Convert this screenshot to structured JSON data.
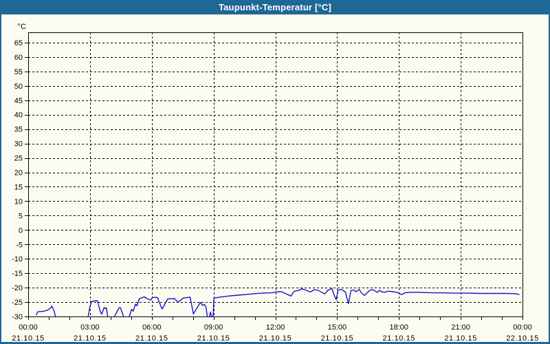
{
  "window": {
    "title": "Taupunkt-Temperatur [°C]"
  },
  "colors": {
    "titlebar": "#1f6795",
    "window_border": "#1f6795",
    "background": "#fcfcf3",
    "grid": "#000000",
    "line": "#1515c8"
  },
  "chart_data": {
    "type": "line",
    "title": "Taupunkt-Temperatur [°C]",
    "ylabel": "°C",
    "xlabel": "",
    "grid": "dashed",
    "legend_position": "none",
    "ylim": [
      -30,
      68
    ],
    "y_tick_step": 5,
    "y_ticks": [
      65,
      60,
      55,
      50,
      45,
      40,
      35,
      30,
      25,
      20,
      15,
      10,
      5,
      0,
      -5,
      -10,
      -15,
      -20,
      -25,
      -30
    ],
    "xlim_hours": [
      0,
      24
    ],
    "x_minor_tick_every_hours": 1,
    "x_ticks": [
      {
        "hour": 0,
        "time": "00:00",
        "date": "21.10.15"
      },
      {
        "hour": 3,
        "time": "03:00",
        "date": "21.10.15"
      },
      {
        "hour": 6,
        "time": "06:00",
        "date": "21.10.15"
      },
      {
        "hour": 9,
        "time": "09:00",
        "date": "21.10.15"
      },
      {
        "hour": 12,
        "time": "12:00",
        "date": "21.10.15"
      },
      {
        "hour": 15,
        "time": "15:00",
        "date": "21.10.15"
      },
      {
        "hour": 18,
        "time": "18:00",
        "date": "21.10.15"
      },
      {
        "hour": 21,
        "time": "21:00",
        "date": "21.10.15"
      },
      {
        "hour": 24,
        "time": "00:00",
        "date": "22.10.15"
      }
    ],
    "series": [
      {
        "name": "Taupunkt",
        "color": "#1515c8",
        "points": [
          [
            0.4,
            -29.5
          ],
          [
            0.45,
            -28.4
          ],
          [
            0.55,
            -28.3
          ],
          [
            0.72,
            -28.2
          ],
          [
            0.9,
            -27.9
          ],
          [
            1.05,
            -27.3
          ],
          [
            1.15,
            -26.4
          ],
          [
            1.25,
            -27.9
          ],
          [
            1.33,
            -30
          ],
          null,
          [
            2.91,
            -30
          ],
          [
            3.0,
            -26.5
          ],
          [
            3.07,
            -24.8
          ],
          [
            3.2,
            -24.6
          ],
          [
            3.36,
            -24.5
          ],
          [
            3.5,
            -28.3
          ],
          [
            3.57,
            -29.2
          ],
          [
            3.69,
            -26.9
          ],
          [
            3.76,
            -27.3
          ],
          [
            3.8,
            -27.0
          ],
          [
            3.86,
            -30
          ],
          null,
          [
            4.19,
            -30
          ],
          [
            4.42,
            -26.9
          ],
          [
            4.48,
            -27.0
          ],
          [
            4.63,
            -30
          ],
          null,
          [
            4.91,
            -30
          ],
          [
            5.02,
            -27.5
          ],
          [
            5.1,
            -28.2
          ],
          [
            5.21,
            -25.7
          ],
          [
            5.28,
            -26.3
          ],
          [
            5.4,
            -23.8
          ],
          [
            5.64,
            -23.2
          ],
          [
            5.8,
            -23.9
          ],
          [
            5.95,
            -24.3
          ],
          [
            6.03,
            -23.4
          ],
          [
            6.27,
            -23.4
          ],
          [
            6.5,
            -27.4
          ],
          [
            6.78,
            -23.9
          ],
          [
            7.1,
            -23.8
          ],
          [
            7.28,
            -25.1
          ],
          [
            7.52,
            -23.6
          ],
          [
            7.86,
            -23.3
          ],
          [
            8.02,
            -29.1
          ],
          [
            8.36,
            -25.1
          ],
          [
            8.47,
            -26.2
          ],
          [
            8.55,
            -25.8
          ],
          [
            8.63,
            -26.6
          ],
          [
            8.7,
            -30
          ],
          null,
          [
            8.8,
            -30
          ],
          [
            8.85,
            -28.5
          ],
          [
            8.9,
            -30
          ],
          [
            8.98,
            -30
          ],
          [
            9.02,
            -23.6
          ],
          [
            9.3,
            -23.3
          ],
          [
            9.7,
            -22.9
          ],
          [
            10.2,
            -22.6
          ],
          [
            10.7,
            -22.3
          ],
          [
            11.3,
            -21.9
          ],
          [
            11.85,
            -21.8
          ],
          [
            12.1,
            -21.4
          ],
          [
            12.3,
            -21.4
          ],
          [
            12.45,
            -21.9
          ],
          [
            12.76,
            -22.9
          ],
          [
            12.9,
            -21.3
          ],
          [
            13.1,
            -21.0
          ],
          [
            13.3,
            -20.4
          ],
          [
            13.5,
            -20.9
          ],
          [
            13.7,
            -21.5
          ],
          [
            13.9,
            -20.7
          ],
          [
            14.1,
            -21.0
          ],
          [
            14.4,
            -22.2
          ],
          [
            14.55,
            -20.9
          ],
          [
            14.75,
            -20.3
          ],
          [
            14.85,
            -22.5
          ],
          [
            14.95,
            -24.2
          ],
          [
            15.05,
            -20.9
          ],
          [
            15.2,
            -20.6
          ],
          [
            15.4,
            -21.5
          ],
          [
            15.55,
            -25.6
          ],
          [
            15.67,
            -21.0
          ],
          [
            15.8,
            -20.8
          ],
          [
            15.93,
            -21.4
          ],
          [
            16.07,
            -20.6
          ],
          [
            16.2,
            -22.0
          ],
          [
            16.33,
            -22.7
          ],
          [
            16.47,
            -21.7
          ],
          [
            16.6,
            -20.9
          ],
          [
            16.73,
            -20.7
          ],
          [
            16.85,
            -21.2
          ],
          [
            16.95,
            -21.7
          ],
          [
            17.05,
            -20.9
          ],
          [
            17.15,
            -21.4
          ],
          [
            17.3,
            -21.6
          ],
          [
            17.5,
            -21.2
          ],
          [
            17.7,
            -21.4
          ],
          [
            17.9,
            -21.6
          ],
          [
            18.05,
            -22.1
          ],
          [
            18.12,
            -22.4
          ],
          [
            18.3,
            -21.8
          ],
          [
            18.6,
            -21.6
          ],
          [
            18.9,
            -21.6
          ],
          [
            19.2,
            -21.7
          ],
          [
            19.6,
            -21.8
          ],
          [
            20.0,
            -21.8
          ],
          [
            20.7,
            -21.9
          ],
          [
            21.3,
            -21.9
          ],
          [
            22.0,
            -22.0
          ],
          [
            22.7,
            -22.0
          ],
          [
            23.3,
            -22.0
          ],
          [
            23.7,
            -22.1
          ],
          [
            23.83,
            -22.4
          ]
        ]
      }
    ]
  }
}
